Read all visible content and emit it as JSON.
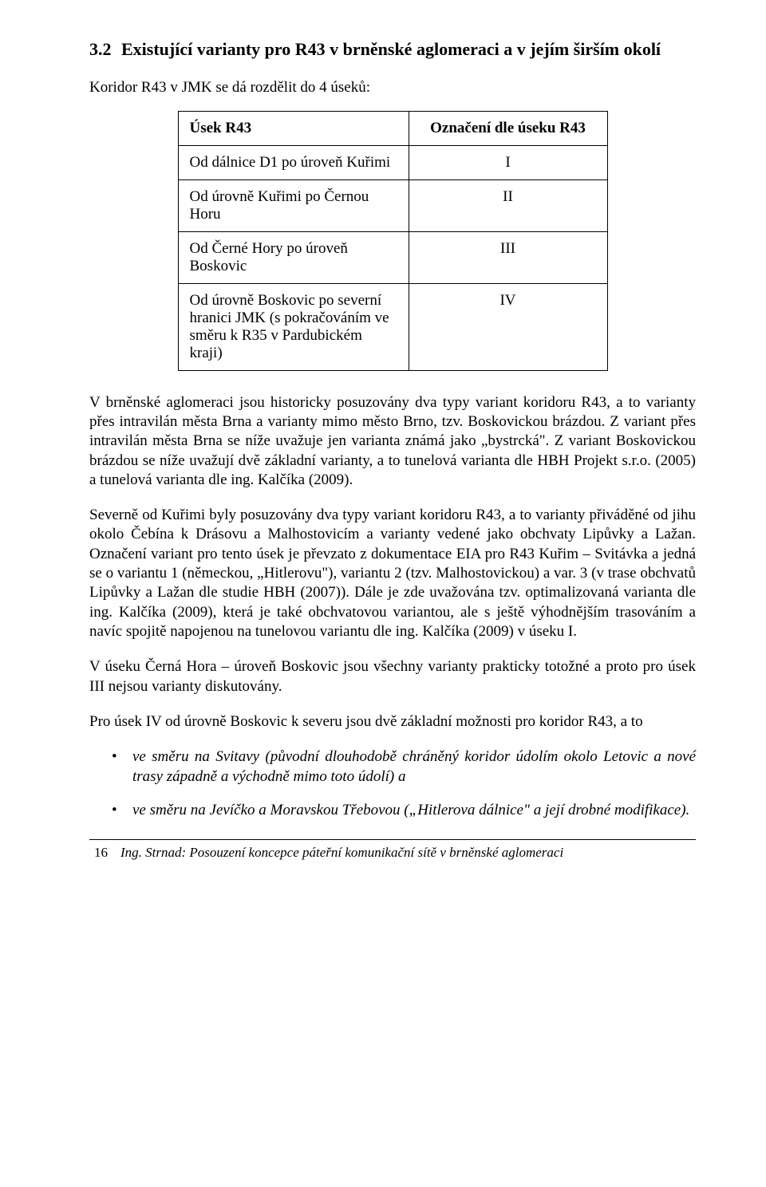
{
  "heading": {
    "number": "3.2",
    "title": "Existující varianty pro R43 v brněnské aglomeraci a v jejím širším okolí"
  },
  "intro": "Koridor R43 v JMK se dá rozdělit do 4 úseků:",
  "table": {
    "header_left": "Úsek R43",
    "header_right": "Označení dle úseku R43",
    "rows": [
      {
        "left": "Od dálnice D1 po úroveň Kuřimi",
        "right": "I"
      },
      {
        "left": "Od úrovně Kuřimi po Černou Horu",
        "right": "II"
      },
      {
        "left": "Od Černé Hory po úroveň Boskovic",
        "right": "III"
      },
      {
        "left": "Od úrovně Boskovic po severní hranici JMK (s pokračováním ve směru k R35 v Pardubickém kraji)",
        "right": "IV"
      }
    ]
  },
  "paras": {
    "p1": "V brněnské aglomeraci jsou historicky posuzovány dva typy variant koridoru R43, a to varianty přes intravilán města Brna a varianty mimo město Brno, tzv. Boskovickou brázdou. Z variant přes intravilán města Brna se níže uvažuje jen varianta známá jako „bystrcká\". Z variant Boskovickou brázdou se níže uvažují dvě základní varianty, a to tunelová varianta dle HBH Projekt s.r.o. (2005) a tunelová varianta dle ing. Kalčíka (2009).",
    "p2": "Severně od Kuřimi byly posuzovány dva typy variant koridoru R43, a to varianty přiváděné od jihu okolo Čebína k Drásovu a Malhostovicím a varianty vedené jako obchvaty Lipůvky a Lažan. Označení variant pro tento úsek je převzato z dokumentace EIA pro R43 Kuřim – Svitávka a jedná se o variantu 1 (německou, „Hitlerovu\"), variantu 2 (tzv. Malhostovickou) a var. 3 (v trase obchvatů Lipůvky a Lažan dle studie HBH (2007)). Dále je zde uvažována tzv. optimalizovaná varianta dle ing. Kalčíka (2009), která je také obchvatovou variantou, ale s ještě výhodnějším trasováním a navíc spojitě napojenou na tunelovou variantu dle ing. Kalčíka (2009) v úseku I.",
    "p3": "V úseku Černá Hora – úroveň Boskovic jsou všechny varianty prakticky totožné a proto pro úsek III nejsou varianty diskutovány.",
    "p4": "Pro úsek IV od úrovně Boskovic k severu jsou dvě základní možnosti pro koridor R43, a to"
  },
  "bullets": {
    "b1": "ve směru na Svitavy (původní dlouhodobě chráněný koridor údolím okolo Letovic a nové trasy západně a východně mimo toto údolí) a",
    "b2": "ve směru na Jevíčko a Moravskou Třebovou („Hitlerova dálnice\" a její drobné modifikace)."
  },
  "footer": {
    "page": "16",
    "text": "Ing. Strnad: Posouzení koncepce páteřní komunikační sítě v brněnské aglomeraci"
  }
}
